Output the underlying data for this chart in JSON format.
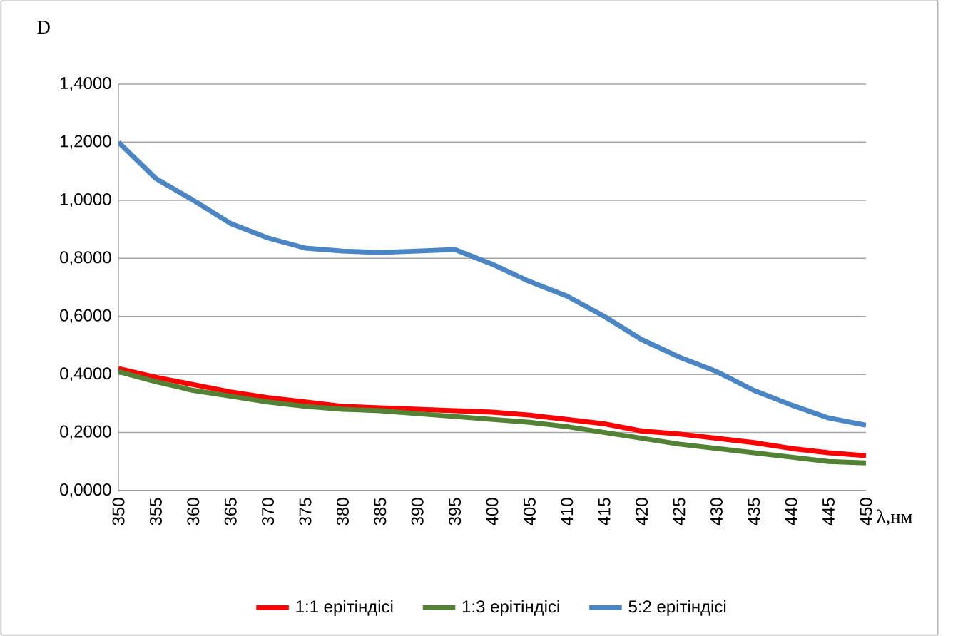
{
  "chart_data": {
    "type": "line",
    "xlabel": "λ,нм",
    "ylabel": "D",
    "x": [
      350,
      355,
      360,
      365,
      370,
      375,
      380,
      385,
      390,
      395,
      400,
      405,
      410,
      415,
      420,
      425,
      430,
      435,
      440,
      445,
      450
    ],
    "series": [
      {
        "name": "1:1 ерітіндісі",
        "color": "#ff0000",
        "values": [
          0.42,
          0.39,
          0.365,
          0.34,
          0.32,
          0.305,
          0.29,
          0.285,
          0.28,
          0.275,
          0.27,
          0.26,
          0.245,
          0.23,
          0.205,
          0.195,
          0.18,
          0.165,
          0.145,
          0.13,
          0.12
        ]
      },
      {
        "name": "1:3 ерітіндісі",
        "color": "#548235",
        "values": [
          0.41,
          0.375,
          0.345,
          0.325,
          0.305,
          0.29,
          0.28,
          0.275,
          0.265,
          0.255,
          0.245,
          0.235,
          0.22,
          0.2,
          0.18,
          0.16,
          0.145,
          0.13,
          0.115,
          0.1,
          0.095
        ]
      },
      {
        "name": "5:2 ерітіндісі",
        "color": "#4a86c5",
        "values": [
          1.2,
          1.075,
          1.0,
          0.92,
          0.87,
          0.835,
          0.825,
          0.82,
          0.825,
          0.83,
          0.78,
          0.72,
          0.67,
          0.6,
          0.52,
          0.46,
          0.41,
          0.345,
          0.295,
          0.25,
          0.225
        ]
      }
    ],
    "xlim": [
      350,
      450
    ],
    "xticks": [
      350,
      355,
      360,
      365,
      370,
      375,
      380,
      385,
      390,
      395,
      400,
      405,
      410,
      415,
      420,
      425,
      430,
      435,
      440,
      445,
      450
    ],
    "ylim": [
      0,
      1.4
    ],
    "yticks": [
      {
        "value": 0,
        "label": "0,0000"
      },
      {
        "value": 0.2,
        "label": "0,2000"
      },
      {
        "value": 0.4,
        "label": "0,4000"
      },
      {
        "value": 0.6,
        "label": "0,6000"
      },
      {
        "value": 0.8,
        "label": "0,8000"
      },
      {
        "value": 1.0,
        "label": "1,0000"
      },
      {
        "value": 1.2,
        "label": "1,2000"
      },
      {
        "value": 1.4,
        "label": "1,4000"
      }
    ],
    "grid": "y",
    "legend": "bottom"
  }
}
